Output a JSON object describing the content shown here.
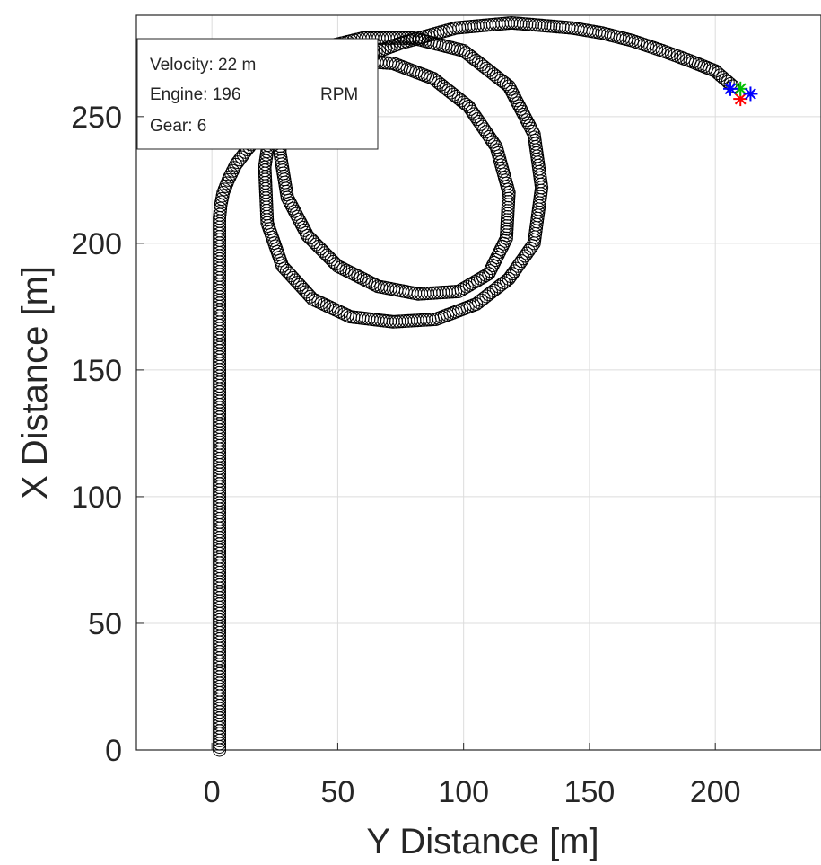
{
  "chart_data": {
    "type": "scatter",
    "title": "",
    "xlabel": "Y Distance [m]",
    "ylabel": "X Distance [m]",
    "xlim": [
      -30,
      242
    ],
    "ylim": [
      0,
      290
    ],
    "grid": true,
    "x_ticks": [
      "0",
      "50",
      "100",
      "150",
      "200"
    ],
    "y_ticks": [
      "0",
      "50",
      "100",
      "150",
      "200",
      "250"
    ],
    "series": [
      {
        "marker": "circle",
        "color": "#000000",
        "x": [
          3,
          3,
          3,
          3,
          3,
          3,
          3,
          3,
          3,
          3,
          3,
          3,
          3,
          3,
          3,
          3,
          3,
          3,
          3,
          3,
          3,
          3,
          3,
          3,
          3.5,
          4.5,
          6.5,
          9.5,
          14,
          20,
          27,
          35,
          44,
          54,
          64,
          75,
          86,
          97,
          108,
          119,
          131,
          143,
          155,
          167,
          179,
          190,
          200,
          207
        ],
        "y": [
          0,
          10,
          20,
          30,
          40,
          50,
          60,
          70,
          80,
          90,
          100,
          110,
          120,
          130,
          140,
          150,
          160,
          170,
          180,
          190,
          195,
          200,
          205,
          210,
          215,
          220,
          225,
          231,
          237,
          244,
          251,
          258,
          264,
          270,
          275,
          279,
          282,
          285,
          286,
          287,
          286,
          285,
          283,
          280,
          276,
          272,
          268,
          262
        ]
      },
      {
        "marker": "circle",
        "color": "#000000",
        "x": [
          26,
          24,
          21,
          22,
          28,
          40,
          55,
          72,
          89,
          105,
          118,
          128,
          131,
          128,
          118,
          100,
          80,
          60,
          43,
          33,
          28,
          27,
          30,
          38,
          50,
          66,
          82,
          98,
          110,
          117,
          118,
          113,
          102,
          88,
          72,
          58,
          46,
          37,
          30,
          25,
          24
        ],
        "y": [
          266,
          250,
          230,
          208,
          191,
          178,
          171,
          169,
          170,
          176,
          186,
          200,
          222,
          243,
          262,
          276,
          281,
          281,
          277,
          268,
          254,
          236,
          218,
          203,
          191,
          183,
          180,
          181,
          188,
          202,
          220,
          238,
          254,
          265,
          271,
          272,
          270,
          264,
          256,
          247,
          243
        ]
      }
    ],
    "vehicle_markers": [
      {
        "color": "#ff0000",
        "x": 210,
        "y": 257
      },
      {
        "color": "#00c000",
        "x": 210,
        "y": 261
      },
      {
        "color": "#0000ff",
        "x": 214,
        "y": 259
      },
      {
        "color": "#0000ff",
        "x": 206,
        "y": 261
      }
    ],
    "info_box": {
      "lines": [
        "Velocity:  22 m",
        "Engine: 196",
        "Gear:  6"
      ],
      "obscured": [
        "",
        "RPM",
        ""
      ]
    }
  }
}
